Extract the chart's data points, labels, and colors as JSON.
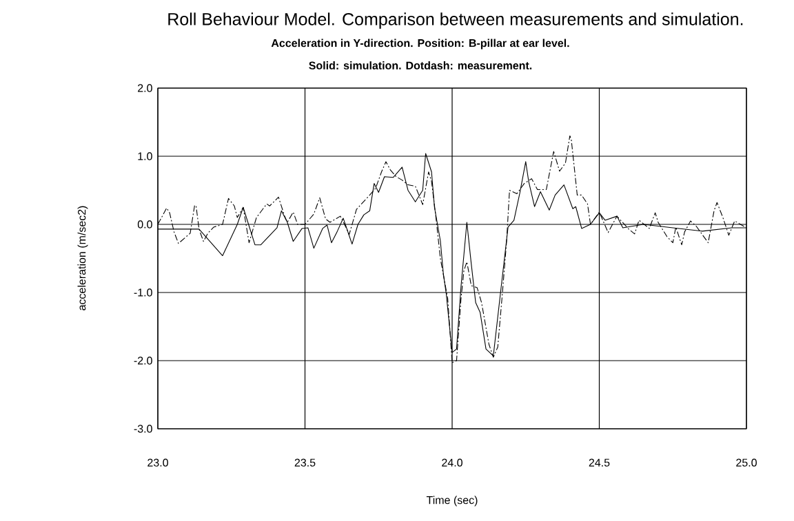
{
  "chart_data": {
    "type": "line",
    "title": "Roll Behaviour Model. Comparison between measurements and simulation.",
    "subtitle": "Acceleration in Y-direction. Position: B-pillar at ear level.",
    "annotations": [
      "Solid: simulation. Dotdash: measurement."
    ],
    "xlabel": "Time (sec)",
    "ylabel": "acceleration (m/sec2)",
    "xlim": [
      23.0,
      25.0
    ],
    "ylim": [
      -3.0,
      2.0
    ],
    "xticks": [
      {
        "value": 23.0,
        "label": "23.0"
      },
      {
        "value": 23.5,
        "label": "23.5"
      },
      {
        "value": 24.0,
        "label": "24.0"
      },
      {
        "value": 24.5,
        "label": "24.5"
      },
      {
        "value": 25.0,
        "label": "25.0"
      }
    ],
    "yticks": [
      {
        "value": -3.0,
        "label": "-3.0"
      },
      {
        "value": -2.0,
        "label": "-2.0"
      },
      {
        "value": -1.0,
        "label": "-1.0"
      },
      {
        "value": 0.0,
        "label": "0.0"
      },
      {
        "value": 1.0,
        "label": "1.0"
      },
      {
        "value": 2.0,
        "label": "2.0"
      }
    ],
    "grid": true,
    "series": [
      {
        "color": "#000000",
        "line_style": "solid",
        "x": [
          23.0,
          23.14,
          23.22,
          23.27,
          23.29,
          23.33,
          23.35,
          23.405,
          23.42,
          23.44,
          23.46,
          23.49,
          23.51,
          23.53,
          23.56,
          23.575,
          23.59,
          23.61,
          23.63,
          23.66,
          23.68,
          23.7,
          23.72,
          23.735,
          23.75,
          23.77,
          23.8,
          23.83,
          23.85,
          23.875,
          23.9,
          23.91,
          23.93,
          23.94,
          23.96,
          23.97,
          23.98,
          24.0,
          24.015,
          24.03,
          24.05,
          24.065,
          24.08,
          24.095,
          24.115,
          24.14,
          24.165,
          24.19,
          24.21,
          24.23,
          24.25,
          24.26,
          24.28,
          24.3,
          24.33,
          24.35,
          24.38,
          24.41,
          24.42,
          24.44,
          24.47,
          24.5,
          24.52,
          24.56,
          24.58,
          24.65,
          24.75,
          24.85,
          24.95,
          25.0
        ],
        "values": [
          -0.07,
          -0.07,
          -0.46,
          0.0,
          0.25,
          -0.3,
          -0.3,
          -0.05,
          0.2,
          0.03,
          -0.25,
          -0.06,
          -0.05,
          -0.35,
          -0.06,
          -0.01,
          -0.27,
          -0.1,
          0.09,
          -0.29,
          0.0,
          0.14,
          0.2,
          0.6,
          0.47,
          0.7,
          0.69,
          0.84,
          0.5,
          0.33,
          0.5,
          1.04,
          0.77,
          0.25,
          -0.24,
          -0.72,
          -1.02,
          -1.88,
          -1.83,
          -0.92,
          0.03,
          -0.58,
          -1.15,
          -1.29,
          -1.83,
          -1.93,
          -0.98,
          -0.04,
          0.06,
          0.46,
          0.92,
          0.63,
          0.26,
          0.48,
          0.21,
          0.43,
          0.58,
          0.23,
          0.26,
          -0.06,
          0.0,
          0.17,
          0.06,
          0.12,
          -0.05,
          0.0,
          -0.05,
          -0.1,
          -0.05,
          -0.05
        ]
      },
      {
        "color": "#000000",
        "line_style": "dashed",
        "x": [
          23.0,
          23.03,
          23.04,
          23.055,
          23.07,
          23.11,
          23.125,
          23.13,
          23.14,
          23.155,
          23.17,
          23.19,
          23.22,
          23.24,
          23.26,
          23.27,
          23.29,
          23.31,
          23.335,
          23.37,
          23.38,
          23.41,
          23.43,
          23.44,
          23.46,
          23.475,
          23.5,
          23.53,
          23.55,
          23.57,
          23.585,
          23.62,
          23.64,
          23.65,
          23.675,
          23.69,
          23.72,
          23.74,
          23.76,
          23.775,
          23.79,
          23.81,
          23.83,
          23.85,
          23.875,
          23.9,
          23.91,
          23.92,
          23.93,
          23.945,
          23.96,
          23.985,
          24.0,
          24.015,
          24.03,
          24.04,
          24.05,
          24.065,
          24.085,
          24.1,
          24.125,
          24.14,
          24.155,
          24.17,
          24.185,
          24.195,
          24.22,
          24.245,
          24.27,
          24.29,
          24.32,
          24.345,
          24.365,
          24.385,
          24.4,
          24.405,
          24.425,
          24.44,
          24.46,
          24.47,
          24.5,
          24.53,
          24.56,
          24.6,
          24.62,
          24.635,
          24.67,
          24.69,
          24.7,
          24.73,
          24.75,
          24.76,
          24.78,
          24.79,
          24.81,
          24.83,
          24.87,
          24.89,
          24.9,
          24.92,
          24.94,
          24.96,
          25.0
        ],
        "values": [
          0.0,
          0.24,
          0.17,
          -0.11,
          -0.28,
          -0.13,
          0.28,
          0.27,
          -0.07,
          -0.25,
          -0.13,
          -0.04,
          0.0,
          0.38,
          0.27,
          0.1,
          0.25,
          -0.27,
          0.1,
          0.3,
          0.27,
          0.4,
          0.13,
          0.03,
          0.18,
          0.0,
          0.0,
          0.15,
          0.39,
          0.08,
          0.03,
          0.12,
          -0.05,
          -0.15,
          0.22,
          0.29,
          0.43,
          0.53,
          0.77,
          0.92,
          0.8,
          0.7,
          0.65,
          0.58,
          0.56,
          0.29,
          0.53,
          0.77,
          0.63,
          0.1,
          -0.5,
          -1.09,
          -2.03,
          -2.0,
          -1.1,
          -0.68,
          -0.55,
          -0.9,
          -0.93,
          -1.15,
          -1.76,
          -1.95,
          -1.8,
          -1.05,
          -0.25,
          0.5,
          0.45,
          0.6,
          0.67,
          0.51,
          0.51,
          1.07,
          0.78,
          0.9,
          1.3,
          1.24,
          0.43,
          0.43,
          0.3,
          0.0,
          0.18,
          -0.12,
          0.12,
          -0.07,
          -0.14,
          0.06,
          -0.06,
          0.17,
          0.03,
          -0.18,
          -0.27,
          -0.04,
          -0.3,
          -0.11,
          0.05,
          -0.03,
          -0.27,
          0.2,
          0.32,
          0.1,
          -0.16,
          0.05,
          -0.05
        ]
      }
    ]
  }
}
